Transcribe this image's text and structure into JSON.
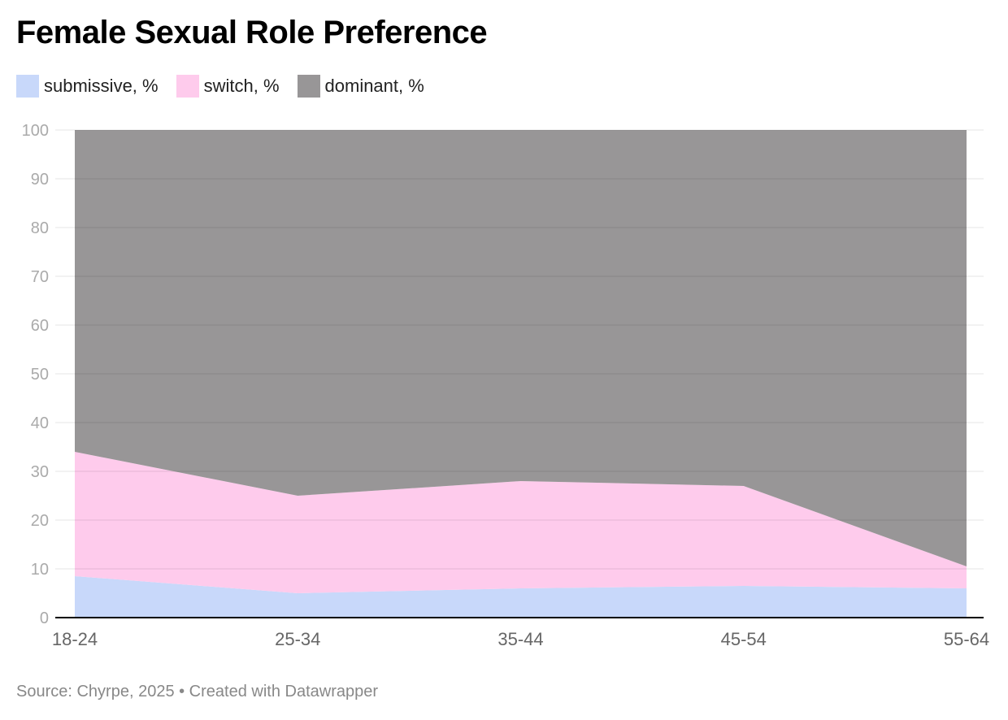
{
  "title": "Female Sexual Role Preference",
  "source": "Source: Chyrpe, 2025 • Created with Datawrapper",
  "colors": {
    "submissive": "#c8d8fa",
    "switch": "#fecbec",
    "dominant": "#989697"
  },
  "chart_data": {
    "type": "area",
    "stacked": true,
    "title": "Female Sexual Role Preference",
    "categories": [
      "18-24",
      "25-34",
      "35-44",
      "45-54",
      "55-64"
    ],
    "series": [
      {
        "name": "submissive, %",
        "values": [
          8.5,
          5,
          6,
          6.5,
          6
        ]
      },
      {
        "name": "switch, %",
        "values": [
          25.5,
          20,
          22,
          20.5,
          4.5
        ]
      },
      {
        "name": "dominant, %",
        "values": [
          66,
          75,
          72,
          73,
          89.5
        ]
      }
    ],
    "yticks": [
      "0",
      "10",
      "20",
      "30",
      "40",
      "50",
      "60",
      "70",
      "80",
      "90",
      "100"
    ],
    "ylim": [
      0,
      100
    ],
    "grid": true,
    "legend": "top-left"
  }
}
